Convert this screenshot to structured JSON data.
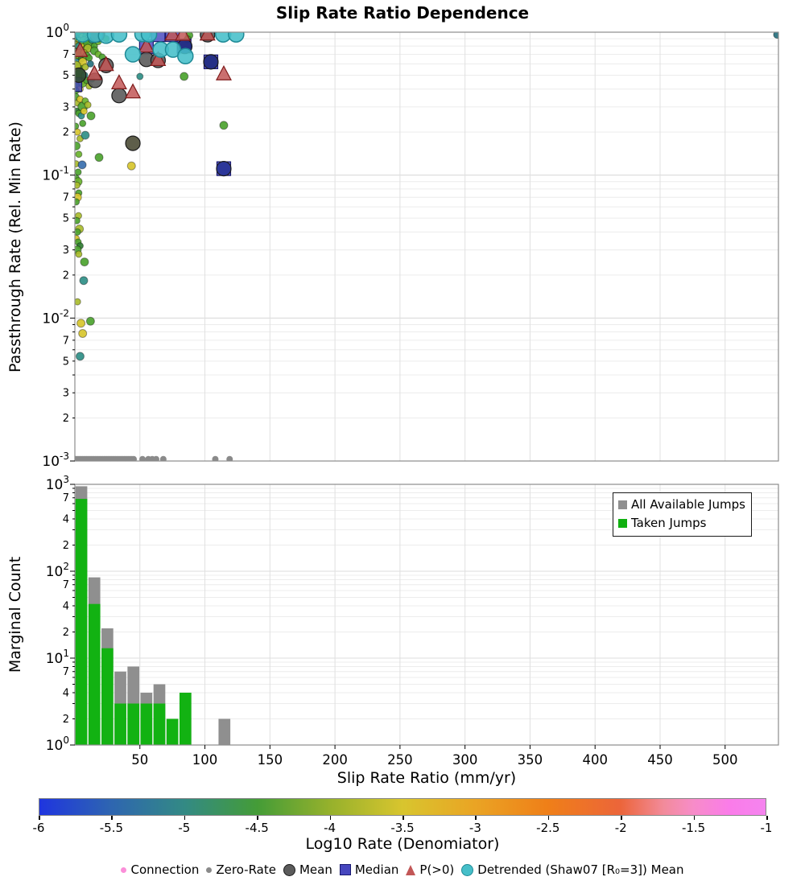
{
  "title": "Slip Rate Ratio Dependence",
  "xlabel": "Slip Rate Ratio (mm/yr)",
  "xlim": [
    0,
    541
  ],
  "xticks": [
    50,
    100,
    150,
    200,
    250,
    300,
    350,
    400,
    450,
    500
  ],
  "panels": {
    "scatter": {
      "ylabel": "Passthrough Rate (Rel. Min Rate)",
      "ylim": [
        0.001,
        1
      ],
      "major_exponents": [
        0,
        -1,
        -2,
        -3
      ],
      "labeled_minors": [
        7,
        5,
        3,
        2
      ]
    },
    "hist": {
      "ylabel": "Marginal Count",
      "ylim": [
        1,
        1000
      ],
      "major_exponents": [
        0,
        1,
        2,
        3
      ],
      "labeled_minors": [
        7,
        4,
        2
      ],
      "legend": {
        "items": [
          {
            "label": "All Available Jumps",
            "color": "#8f8f8f"
          },
          {
            "label": "Taken Jumps",
            "color": "#10b010"
          }
        ]
      }
    }
  },
  "colorbar": {
    "label": "Log10 Rate (Denomiator)",
    "ticks": [
      "-6",
      "-5.5",
      "-5",
      "-4.5",
      "-4",
      "-3.5",
      "-3",
      "-2.5",
      "-2",
      "-1.5",
      "-1"
    ],
    "stops": [
      [
        0,
        "#1f35df"
      ],
      [
        10,
        "#2e66b0"
      ],
      [
        20,
        "#338a84"
      ],
      [
        30,
        "#449c37"
      ],
      [
        40,
        "#96b12c"
      ],
      [
        50,
        "#d8c52e"
      ],
      [
        60,
        "#eaa424"
      ],
      [
        70,
        "#ef7f18"
      ],
      [
        80,
        "#ec653a"
      ],
      [
        86,
        "#f28b9b"
      ],
      [
        90,
        "#f78cc8"
      ],
      [
        95,
        "#fa7ce9"
      ],
      [
        100,
        "#f584ef"
      ]
    ]
  },
  "bottom_legend": {
    "items": [
      {
        "label": "Connection",
        "type": "dot",
        "color": "#fb8fd9",
        "size": 7
      },
      {
        "label": "Zero-Rate",
        "type": "dot",
        "color": "#8a8a8a",
        "size": 7
      },
      {
        "label": "Mean",
        "type": "circle",
        "color": "#5b5b5b",
        "edge": "#1c1c1c",
        "size": 13
      },
      {
        "label": "Median",
        "type": "square",
        "color": "#4646be",
        "edge": "#191970",
        "size": 12
      },
      {
        "label": "P(>0)",
        "type": "triangle",
        "color": "#c25757",
        "size": 13
      },
      {
        "label": "Detrended (Shaw07 [R₀=3]) Mean",
        "type": "circle",
        "color": "#46bfc9",
        "edge": "#1f8a96",
        "size": 13
      }
    ]
  },
  "chart_data": {
    "type": "scatter",
    "title": "Slip Rate Ratio Dependence",
    "xlabel": "Slip Rate Ratio (mm/yr)",
    "scatter": {
      "palette": {
        "Y": "#d7c62e",
        "YG": "#a9bc2d",
        "G": "#4ca32f",
        "LG": "#6ab32e",
        "DG": "#2f7d33",
        "T": "#2f8f87",
        "DT": "#26707e",
        "SB": "#3a6fae",
        "B": "#2b4fd0",
        "O": "#8a9b2a"
      },
      "connection": [
        [
          0.5,
          0.99,
          "Y",
          5
        ],
        [
          1.5,
          0.975,
          "G",
          6
        ],
        [
          2.5,
          0.995,
          "T",
          7
        ],
        [
          4,
          0.96,
          "YG",
          5
        ],
        [
          5.5,
          0.99,
          "O",
          5
        ],
        [
          7,
          0.98,
          "T",
          6
        ],
        [
          9,
          0.965,
          "DT",
          7
        ],
        [
          11,
          0.99,
          "G",
          4
        ],
        [
          13,
          0.97,
          "Y",
          4
        ],
        [
          3,
          0.93,
          "G",
          7
        ],
        [
          6,
          0.92,
          "YG",
          5
        ],
        [
          8.5,
          0.94,
          "G",
          4
        ],
        [
          12,
          0.92,
          "T",
          5
        ],
        [
          16,
          0.95,
          "O",
          6
        ],
        [
          18,
          0.93,
          "G",
          4
        ],
        [
          21,
          0.96,
          "YG",
          4
        ],
        [
          1,
          0.9,
          "DG",
          5
        ],
        [
          10,
          0.9,
          "Y",
          4
        ],
        [
          14,
          0.91,
          "G",
          5
        ],
        [
          24,
          0.9,
          "G",
          4
        ],
        [
          88,
          0.95,
          "G",
          4.5
        ],
        [
          86.7,
          0.89,
          "G",
          4.5
        ],
        [
          540,
          0.96,
          "DT",
          4.5
        ],
        [
          0.5,
          0.88,
          "YG",
          5
        ],
        [
          2,
          0.85,
          "G",
          6
        ],
        [
          3.5,
          0.87,
          "Y",
          4
        ],
        [
          5,
          0.83,
          "T",
          5
        ],
        [
          7,
          0.86,
          "LG",
          6
        ],
        [
          9,
          0.8,
          "G",
          4
        ],
        [
          1.5,
          0.78,
          "DG",
          4
        ],
        [
          4,
          0.76,
          "YG",
          5
        ],
        [
          6.5,
          0.79,
          "Y",
          4
        ],
        [
          11,
          0.84,
          "G",
          7
        ],
        [
          13,
          0.88,
          "T",
          4
        ],
        [
          8,
          0.76,
          "G",
          4
        ],
        [
          0.8,
          0.82,
          "O",
          4
        ],
        [
          10,
          0.77,
          "YG",
          5
        ],
        [
          15,
          0.8,
          "G",
          4
        ],
        [
          18,
          0.86,
          "LG",
          4
        ],
        [
          2.8,
          0.8,
          "T",
          4
        ],
        [
          0.5,
          0.72,
          "G",
          5
        ],
        [
          2,
          0.68,
          "Y",
          4
        ],
        [
          3.5,
          0.7,
          "LG",
          6
        ],
        [
          5,
          0.65,
          "DG",
          4
        ],
        [
          7,
          0.72,
          "YG",
          4
        ],
        [
          9,
          0.68,
          "G",
          5
        ],
        [
          1.2,
          0.62,
          "T",
          4
        ],
        [
          4.2,
          0.58,
          "G",
          4
        ],
        [
          6,
          0.62,
          "Y",
          5
        ],
        [
          8,
          0.57,
          "YG",
          4
        ],
        [
          11,
          0.66,
          "G",
          4
        ],
        [
          15,
          0.74,
          "G",
          5
        ],
        [
          18,
          0.7,
          "LG",
          4
        ],
        [
          21,
          0.67,
          "G",
          4
        ],
        [
          2.5,
          0.56,
          "O",
          4
        ],
        [
          12,
          0.6,
          "DT",
          4
        ],
        [
          0.8,
          0.58,
          "YG",
          6
        ],
        [
          0.5,
          0.52,
          "Y",
          4
        ],
        [
          2,
          0.48,
          "G",
          5
        ],
        [
          3.8,
          0.5,
          "DG",
          7
        ],
        [
          5.5,
          0.45,
          "YG",
          4
        ],
        [
          7.5,
          0.5,
          "T",
          4
        ],
        [
          1.5,
          0.42,
          "G",
          4
        ],
        [
          4,
          0.4,
          "Y",
          4
        ],
        [
          6,
          0.44,
          "LG",
          5
        ],
        [
          9,
          0.46,
          "G",
          4
        ],
        [
          11,
          0.42,
          "YG",
          4
        ],
        [
          0.8,
          0.39,
          "G",
          4
        ],
        [
          13,
          0.47,
          "T",
          4
        ],
        [
          50,
          0.49,
          "T",
          4
        ],
        [
          84,
          0.49,
          "G",
          5
        ],
        [
          0.5,
          0.35,
          "G",
          5
        ],
        [
          2,
          0.32,
          "YG",
          4
        ],
        [
          4,
          0.34,
          "Y",
          4
        ],
        [
          6,
          0.3,
          "G",
          6
        ],
        [
          8,
          0.33,
          "LG",
          4
        ],
        [
          1.2,
          0.28,
          "DG",
          4
        ],
        [
          3,
          0.27,
          "G",
          4
        ],
        [
          5,
          0.26,
          "T",
          4
        ],
        [
          10,
          0.31,
          "YG",
          4
        ],
        [
          7,
          0.28,
          "Y",
          4
        ],
        [
          12.4,
          0.26,
          "G",
          5
        ],
        [
          0.5,
          0.22,
          "G",
          4
        ],
        [
          2,
          0.2,
          "Y",
          4
        ],
        [
          4,
          0.18,
          "YG",
          4
        ],
        [
          1,
          0.16,
          "G",
          5
        ],
        [
          3,
          0.14,
          "LG",
          4
        ],
        [
          6,
          0.23,
          "G",
          4
        ],
        [
          0.8,
          0.12,
          "YG",
          4
        ],
        [
          5.6,
          0.118,
          "SB",
          5
        ],
        [
          2.5,
          0.105,
          "G",
          4
        ],
        [
          18.6,
          0.133,
          "G",
          5
        ],
        [
          43.5,
          0.116,
          "Y",
          5
        ],
        [
          8,
          0.19,
          "T",
          5
        ],
        [
          114.5,
          0.223,
          "G",
          5
        ],
        [
          1,
          0.095,
          "G",
          4
        ],
        [
          2.5,
          0.09,
          "LG",
          5
        ],
        [
          1.5,
          0.085,
          "YG",
          4
        ],
        [
          3,
          0.075,
          "G",
          4
        ],
        [
          2,
          0.07,
          "Y",
          5
        ],
        [
          1,
          0.065,
          "G",
          4
        ],
        [
          2.8,
          0.052,
          "YG",
          4
        ],
        [
          1.5,
          0.048,
          "G",
          4
        ],
        [
          3.5,
          0.042,
          "YG",
          5
        ],
        [
          2,
          0.04,
          "G",
          4
        ],
        [
          1,
          0.036,
          "Y",
          4
        ],
        [
          2.5,
          0.034,
          "G",
          4
        ],
        [
          4,
          0.032,
          "DG",
          4
        ],
        [
          1.8,
          0.03,
          "G",
          5
        ],
        [
          3,
          0.028,
          "YG",
          4
        ],
        [
          7.4,
          0.0247,
          "G",
          5
        ],
        [
          6.8,
          0.0183,
          "T",
          5
        ],
        [
          2,
          0.013,
          "YG",
          4
        ],
        [
          12,
          0.0095,
          "G",
          5
        ],
        [
          4.7,
          0.0092,
          "Y",
          5
        ],
        [
          6,
          0.0078,
          "Y",
          5
        ],
        [
          4,
          0.0054,
          "T",
          5
        ]
      ],
      "zero_rate": {
        "y": 0.00103,
        "color": "#8a8a8a",
        "r": 4,
        "x": [
          0.5,
          1.8,
          3.2,
          4.6,
          6,
          7.4,
          8.8,
          10.2,
          11.6,
          13,
          14.4,
          15.8,
          17.2,
          18.6,
          20,
          21.4,
          22.8,
          24.2,
          25.6,
          27,
          28.4,
          29.8,
          31.2,
          32.6,
          34,
          35.4,
          36.8,
          38.2,
          39.6,
          41,
          42.4,
          43.8,
          45.2,
          52,
          56.5,
          59.5,
          62.5,
          68,
          108,
          119
        ]
      },
      "median": {
        "color": "#4646be",
        "edge": "#191970",
        "size": 17,
        "points": [
          [
            64,
            0.96
          ],
          [
            75,
            0.96
          ],
          [
            55,
            0.79
          ],
          [
            84,
            0.8
          ],
          [
            0,
            0.43
          ],
          [
            104.6,
            0.62
          ],
          [
            114.5,
            0.111
          ]
        ]
      },
      "mean": {
        "edge": "#1c1c1c",
        "r": 9,
        "points": [
          [
            17,
            0.96,
            "#5b5b5b"
          ],
          [
            102,
            0.96,
            "#546060"
          ],
          [
            55,
            0.645,
            "#5b5b5b"
          ],
          [
            64,
            0.635,
            "#5b5b5b"
          ],
          [
            24,
            0.585,
            "#5b5b5b"
          ],
          [
            15.5,
            0.46,
            "#5b5b5b"
          ],
          [
            34,
            0.36,
            "#5b5b5b"
          ],
          [
            44.6,
            0.167,
            "#4c4c36"
          ],
          [
            84.5,
            0.795,
            "#1e2a7e"
          ],
          [
            104.6,
            0.62,
            "#1e2a7e"
          ],
          [
            114.5,
            0.111,
            "#263295"
          ],
          [
            3,
            0.5,
            "#324d32"
          ]
        ]
      },
      "p_gt0": {
        "color": "#c25757",
        "edge": "#801c1c",
        "points": [
          [
            75,
            0.965
          ],
          [
            83,
            0.96
          ],
          [
            102,
            0.965
          ],
          [
            4,
            0.74
          ],
          [
            55,
            0.795
          ],
          [
            64,
            0.64
          ],
          [
            24,
            0.59
          ],
          [
            15,
            0.51
          ],
          [
            34,
            0.44
          ],
          [
            44.6,
            0.38
          ],
          [
            114.5,
            0.508
          ]
        ]
      },
      "detrended": {
        "color": "#46bfc9",
        "edge": "#1f8a96",
        "r": 9.5,
        "points": [
          [
            6,
            0.965
          ],
          [
            15.5,
            0.96
          ],
          [
            24,
            0.945
          ],
          [
            34,
            0.965
          ],
          [
            52,
            0.97
          ],
          [
            57,
            0.965
          ],
          [
            44.6,
            0.7
          ],
          [
            66,
            0.755
          ],
          [
            75.5,
            0.755
          ],
          [
            85,
            0.68
          ],
          [
            114,
            0.965
          ],
          [
            124,
            0.965
          ]
        ]
      }
    },
    "histogram": {
      "bin_width": 10,
      "bin_starts": [
        0,
        10,
        20,
        30,
        40,
        50,
        60,
        70,
        80,
        90,
        100,
        110
      ],
      "all_available": [
        950,
        85,
        22,
        7,
        8,
        4,
        5,
        2,
        4,
        0,
        0,
        2
      ],
      "taken": [
        680,
        42,
        13,
        3,
        3,
        3,
        3,
        2,
        4,
        0,
        0,
        0
      ],
      "colors": {
        "all_available": "#8f8f8f",
        "taken": "#12b212"
      }
    }
  }
}
